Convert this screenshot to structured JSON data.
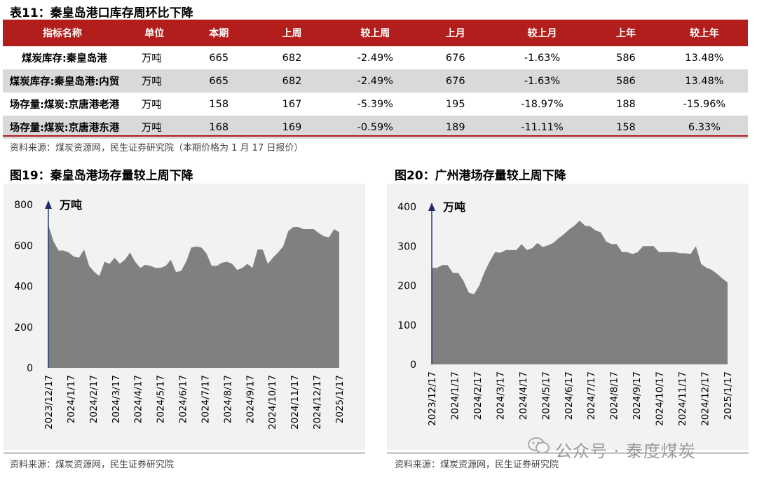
{
  "table": {
    "title": "表11：秦皇岛港口库存周环比下降",
    "headers": [
      "指标名称",
      "单位",
      "本期",
      "上周",
      "较上周",
      "上月",
      "较上月",
      "上年",
      "较上年"
    ],
    "rows": [
      [
        "煤炭库存:秦皇岛港",
        "万吨",
        "665",
        "682",
        "-2.49%",
        "676",
        "-1.63%",
        "586",
        "13.48%"
      ],
      [
        "煤炭库存:秦皇岛港:内贸",
        "万吨",
        "665",
        "682",
        "-2.49%",
        "676",
        "-1.63%",
        "586",
        "13.48%"
      ],
      [
        "场存量:煤炭:京唐港老港",
        "万吨",
        "158",
        "167",
        "-5.39%",
        "195",
        "-18.97%",
        "188",
        "-15.96%"
      ],
      [
        "场存量:煤炭:京唐港东港",
        "万吨",
        "168",
        "169",
        "-0.59%",
        "189",
        "-11.11%",
        "158",
        "6.33%"
      ]
    ],
    "source": "资料来源：煤炭资源网，民生证券研究院（本期价格为 1 月 17 日报价）"
  },
  "chart_data": [
    {
      "type": "area",
      "title": "图19：秦皇岛港场存量较上周下降",
      "ylabel": "万吨",
      "ylim": [
        0,
        800
      ],
      "yticks": [
        0,
        200,
        400,
        600,
        800
      ],
      "xlabels": [
        "2023/12/17",
        "2024/1/17",
        "2024/2/17",
        "2024/3/17",
        "2024/4/17",
        "2024/5/17",
        "2024/6/17",
        "2024/7/17",
        "2024/8/17",
        "2024/9/17",
        "2024/10/17",
        "2024/11/17",
        "2024/12/17",
        "2025/1/17"
      ],
      "values": [
        700,
        620,
        575,
        575,
        565,
        545,
        540,
        580,
        500,
        470,
        450,
        520,
        510,
        540,
        510,
        530,
        565,
        520,
        490,
        505,
        500,
        490,
        490,
        500,
        530,
        470,
        475,
        520,
        590,
        595,
        590,
        560,
        500,
        500,
        515,
        520,
        510,
        480,
        490,
        510,
        490,
        580,
        580,
        510,
        540,
        565,
        595,
        670,
        690,
        690,
        680,
        680,
        680,
        660,
        645,
        640,
        680,
        665
      ],
      "source": "资料来源：煤炭资源网，民生证券研究院",
      "color": "#808080"
    },
    {
      "type": "area",
      "title": "图20：广州港场存量较上周下降",
      "ylabel": "万吨",
      "ylim": [
        0,
        400
      ],
      "yticks": [
        0,
        100,
        200,
        300,
        400
      ],
      "xlabels": [
        "2023/12/17",
        "2024/1/17",
        "2024/2/17",
        "2024/3/17",
        "2024/4/17",
        "2024/5/17",
        "2024/6/17",
        "2024/7/17",
        "2024/8/17",
        "2024/9/17",
        "2024/10/17",
        "2024/11/17",
        "2024/12/17",
        "2025/1/17"
      ],
      "values": [
        245,
        245,
        252,
        252,
        232,
        232,
        212,
        182,
        178,
        200,
        235,
        262,
        285,
        283,
        290,
        290,
        290,
        305,
        290,
        295,
        308,
        298,
        302,
        308,
        320,
        330,
        342,
        352,
        365,
        352,
        350,
        340,
        335,
        312,
        305,
        305,
        285,
        285,
        280,
        285,
        300,
        300,
        300,
        285,
        285,
        285,
        285,
        282,
        282,
        280,
        300,
        255,
        245,
        240,
        230,
        218,
        208
      ],
      "source": "资料来源：煤炭资源网，民生证券研究院",
      "color": "#808080"
    }
  ],
  "watermark": "公众号 · 泰度煤炭"
}
